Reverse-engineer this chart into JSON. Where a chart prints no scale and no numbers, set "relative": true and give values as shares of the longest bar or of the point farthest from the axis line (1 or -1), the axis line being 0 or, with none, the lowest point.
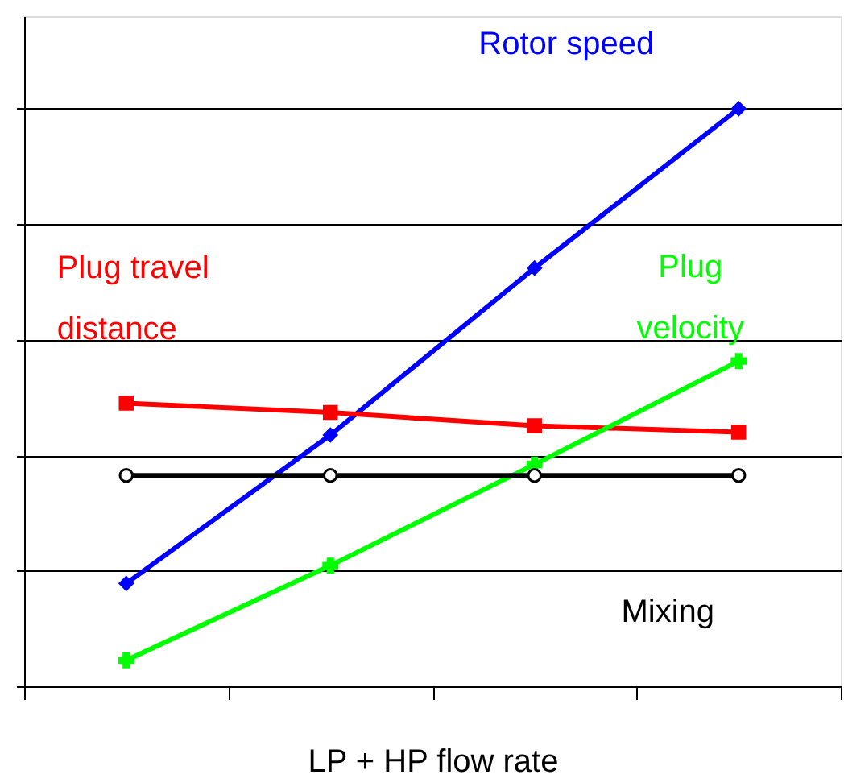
{
  "chart_data": {
    "type": "line",
    "xlabel": "LP + HP flow rate",
    "relative": true,
    "grid": "y",
    "categories": [
      null,
      null,
      null,
      null
    ],
    "series": [
      {
        "name": "Rotor speed",
        "color": "#0000ff",
        "marker": "diamond",
        "values": [
          0.178,
          0.435,
          0.724,
          1.0
        ]
      },
      {
        "name": "Plug travel\ndistance",
        "color": "#ff0000",
        "marker": "square",
        "values": [
          0.49,
          0.474,
          0.451,
          0.44
        ]
      },
      {
        "name": "Plug\nvelocity",
        "color": "#00ff00",
        "marker": "cross",
        "values": [
          0.045,
          0.209,
          0.384,
          0.563
        ]
      },
      {
        "name": "Mixing",
        "color": "#000000",
        "marker": "circle",
        "values": [
          0.365,
          0.365,
          0.365,
          0.365
        ]
      }
    ]
  }
}
